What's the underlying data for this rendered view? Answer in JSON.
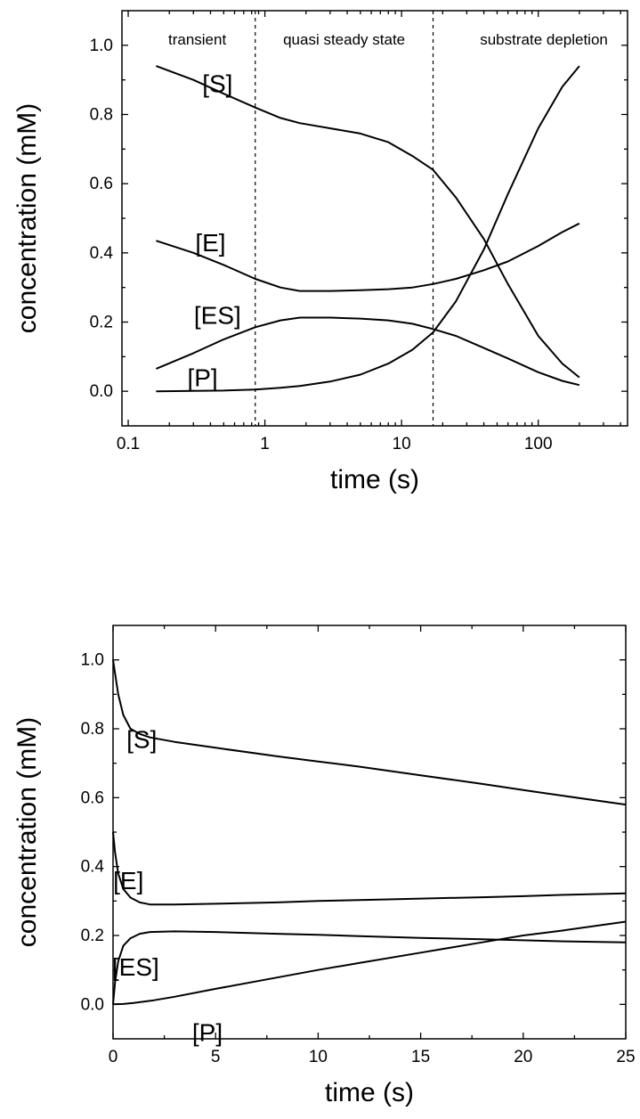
{
  "chart_data": [
    {
      "type": "line",
      "xscale": "log",
      "xlabel": "time (s)",
      "ylabel": "concentration (mM)",
      "xlim": [
        0.09,
        450
      ],
      "ylim": [
        -0.1,
        1.1
      ],
      "xticks": [
        0.1,
        1,
        10,
        100
      ],
      "xtick_labels": [
        "0.1",
        "1",
        "10",
        "100"
      ],
      "yticks": [
        0.0,
        0.2,
        0.4,
        0.6,
        0.8,
        1.0
      ],
      "ytick_labels": [
        "0.0",
        "0.2",
        "0.4",
        "0.6",
        "0.8",
        "1.0"
      ],
      "vlines": [
        0.85,
        17
      ],
      "regions": [
        {
          "label": "transient",
          "x": 0.32
        },
        {
          "label": "quasi steady state",
          "x": 3.8
        },
        {
          "label": "substrate depletion",
          "x": 110
        }
      ],
      "series": [
        {
          "name": "[S]",
          "label_at": [
            0.45,
            0.89
          ],
          "x": [
            0.16,
            0.3,
            0.5,
            0.85,
            1.3,
            1.8,
            3,
            5,
            8,
            12,
            17,
            25,
            40,
            60,
            100,
            150,
            200
          ],
          "y": [
            0.94,
            0.9,
            0.86,
            0.82,
            0.79,
            0.775,
            0.76,
            0.745,
            0.72,
            0.68,
            0.64,
            0.56,
            0.44,
            0.31,
            0.16,
            0.08,
            0.04
          ]
        },
        {
          "name": "[E]",
          "label_at": [
            0.4,
            0.43
          ],
          "x": [
            0.16,
            0.3,
            0.5,
            0.85,
            1.3,
            1.8,
            3,
            5,
            8,
            12,
            17,
            25,
            40,
            60,
            100,
            150,
            200
          ],
          "y": [
            0.435,
            0.4,
            0.365,
            0.325,
            0.3,
            0.29,
            0.29,
            0.292,
            0.295,
            0.3,
            0.31,
            0.325,
            0.35,
            0.375,
            0.42,
            0.46,
            0.485
          ]
        },
        {
          "name": "[ES]",
          "label_at": [
            0.45,
            0.22
          ],
          "x": [
            0.16,
            0.3,
            0.5,
            0.85,
            1.3,
            1.8,
            3,
            5,
            8,
            12,
            17,
            25,
            40,
            60,
            100,
            150,
            200
          ],
          "y": [
            0.065,
            0.11,
            0.15,
            0.185,
            0.205,
            0.213,
            0.213,
            0.21,
            0.205,
            0.195,
            0.18,
            0.16,
            0.125,
            0.095,
            0.055,
            0.03,
            0.018
          ]
        },
        {
          "name": "[P]",
          "label_at": [
            0.35,
            0.04
          ],
          "x": [
            0.16,
            0.3,
            0.5,
            0.85,
            1.3,
            1.8,
            3,
            5,
            8,
            12,
            17,
            25,
            40,
            60,
            100,
            150,
            200
          ],
          "y": [
            0.0,
            0.001,
            0.002,
            0.005,
            0.01,
            0.015,
            0.028,
            0.048,
            0.08,
            0.12,
            0.17,
            0.26,
            0.41,
            0.57,
            0.76,
            0.88,
            0.94
          ]
        }
      ]
    },
    {
      "type": "line",
      "xlabel": "time (s)",
      "ylabel": "concentration (mM)",
      "xlim": [
        0,
        25
      ],
      "ylim": [
        -0.1,
        1.1
      ],
      "xticks": [
        0,
        5,
        10,
        15,
        20,
        25
      ],
      "xtick_labels": [
        "0",
        "5",
        "10",
        "15",
        "20",
        "25"
      ],
      "yticks": [
        0.0,
        0.2,
        0.4,
        0.6,
        0.8,
        1.0
      ],
      "ytick_labels": [
        "0.0",
        "0.2",
        "0.4",
        "0.6",
        "0.8",
        "1.0"
      ],
      "series": [
        {
          "name": "[S]",
          "label_at": [
            1.4,
            0.77
          ],
          "x": [
            0,
            0.1,
            0.25,
            0.5,
            0.85,
            1.3,
            1.8,
            3,
            5,
            8,
            10,
            12,
            15,
            18,
            20,
            22,
            25
          ],
          "y": [
            1.0,
            0.96,
            0.9,
            0.84,
            0.8,
            0.785,
            0.775,
            0.762,
            0.745,
            0.72,
            0.705,
            0.69,
            0.665,
            0.64,
            0.622,
            0.605,
            0.58
          ]
        },
        {
          "name": "[E]",
          "label_at": [
            0.75,
            0.36
          ],
          "x": [
            0,
            0.1,
            0.25,
            0.5,
            0.85,
            1.3,
            1.8,
            3,
            5,
            8,
            10,
            12,
            15,
            18,
            20,
            22,
            25
          ],
          "y": [
            0.5,
            0.44,
            0.38,
            0.335,
            0.31,
            0.296,
            0.29,
            0.29,
            0.292,
            0.296,
            0.3,
            0.303,
            0.307,
            0.311,
            0.314,
            0.318,
            0.322
          ]
        },
        {
          "name": "[ES]",
          "label_at": [
            1.1,
            0.11
          ],
          "x": [
            0,
            0.1,
            0.25,
            0.5,
            0.85,
            1.3,
            1.8,
            3,
            5,
            8,
            10,
            12,
            15,
            18,
            20,
            22,
            25
          ],
          "y": [
            0.0,
            0.065,
            0.125,
            0.17,
            0.192,
            0.205,
            0.21,
            0.212,
            0.21,
            0.205,
            0.202,
            0.198,
            0.193,
            0.189,
            0.186,
            0.183,
            0.18
          ]
        },
        {
          "name": "[P]",
          "label_at": [
            4.6,
            -0.08
          ],
          "x": [
            0,
            0.5,
            1,
            2,
            3,
            5,
            8,
            10,
            12,
            15,
            18,
            20,
            22,
            25
          ],
          "y": [
            0.0,
            0.001,
            0.004,
            0.012,
            0.022,
            0.045,
            0.078,
            0.1,
            0.12,
            0.15,
            0.18,
            0.2,
            0.215,
            0.24
          ]
        }
      ]
    }
  ]
}
